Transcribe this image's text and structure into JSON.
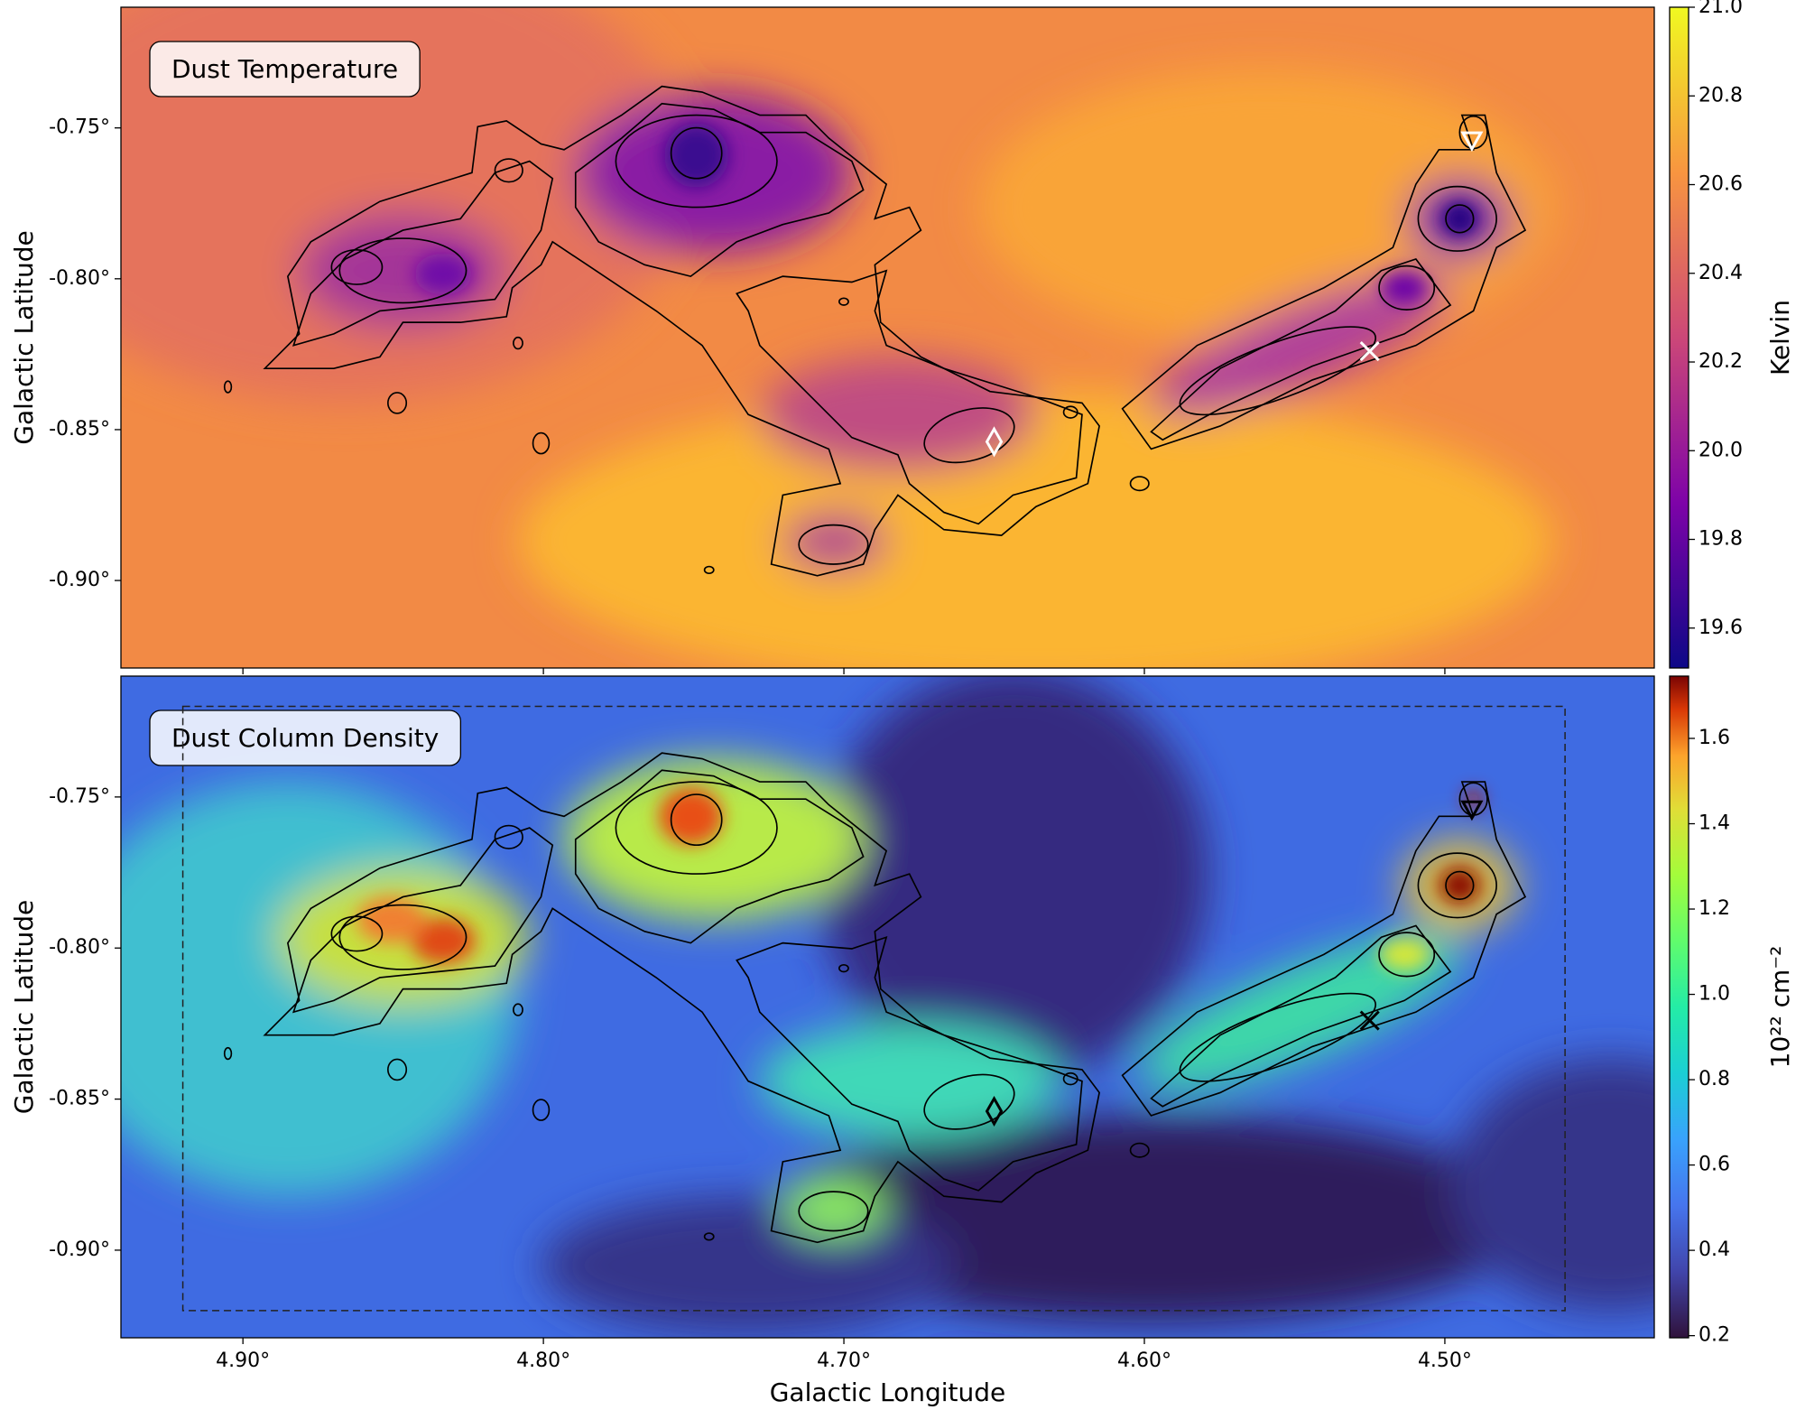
{
  "chart_data": [
    {
      "type": "image",
      "title": "Dust Temperature",
      "ylabel": "Galactic Latitude",
      "xlim": [
        4.9406,
        4.4303
      ],
      "ylim": [
        -0.929,
        -0.71
      ],
      "xticks": [
        4.9,
        4.8,
        4.7,
        4.6,
        4.5
      ],
      "yticks": [
        {
          "value": -0.75,
          "label": "-0.75°"
        },
        {
          "value": -0.8,
          "label": "-0.80°"
        },
        {
          "value": -0.85,
          "label": "-0.85°"
        },
        {
          "value": -0.9,
          "label": "-0.90°"
        }
      ],
      "colorbar": {
        "label": "Kelvin",
        "colormap": "plasma",
        "lim": [
          19.51,
          21.0
        ],
        "ticks": [
          19.6,
          19.8,
          {
            "value": 20.0,
            "label": "20.0"
          },
          20.2,
          20.4,
          20.6,
          20.8,
          {
            "value": 21.0,
            "label": "21.0"
          }
        ]
      },
      "points": [
        {
          "x": 4.65,
          "y": -0.854,
          "marker": "diamond",
          "color": "#ffffff"
        },
        {
          "x": 4.525,
          "y": -0.824,
          "marker": "x",
          "color": "#ffffff"
        },
        {
          "x": 4.491,
          "y": -0.754,
          "marker": "triangle",
          "color": "#ffffff"
        }
      ]
    },
    {
      "type": "image",
      "title": "Dust Column Density",
      "ylabel": "Galactic Latitude",
      "xlabel": "Galactic Longitude",
      "xlim": [
        4.9406,
        4.4303
      ],
      "ylim": [
        -0.929,
        -0.71
      ],
      "xticks": [
        {
          "value": 4.9,
          "label": "4.90°"
        },
        {
          "value": 4.8,
          "label": "4.80°"
        },
        {
          "value": 4.7,
          "label": "4.70°"
        },
        {
          "value": 4.6,
          "label": "4.60°"
        },
        {
          "value": 4.5,
          "label": "4.50°"
        }
      ],
      "yticks": [
        {
          "value": -0.75,
          "label": "-0.75°"
        },
        {
          "value": -0.8,
          "label": "-0.80°"
        },
        {
          "value": -0.85,
          "label": "-0.85°"
        },
        {
          "value": -0.9,
          "label": "-0.90°"
        }
      ],
      "colorbar": {
        "label": "10²² cm⁻²",
        "colormap": "turbo",
        "lim": [
          0.195,
          1.746
        ],
        "ticks": [
          0.2,
          0.4,
          0.6,
          0.8,
          {
            "value": 1.0,
            "label": "1.0"
          },
          1.2,
          1.4,
          1.6
        ]
      },
      "box": {
        "x": [
          4.92,
          4.46
        ],
        "y": [
          -0.72,
          -0.92
        ]
      },
      "points": [
        {
          "x": 4.65,
          "y": -0.854,
          "marker": "diamond",
          "color": "#000000"
        },
        {
          "x": 4.525,
          "y": -0.824,
          "marker": "x",
          "color": "#000000"
        },
        {
          "x": 4.491,
          "y": -0.754,
          "marker": "triangle",
          "color": "#000000"
        }
      ]
    }
  ]
}
